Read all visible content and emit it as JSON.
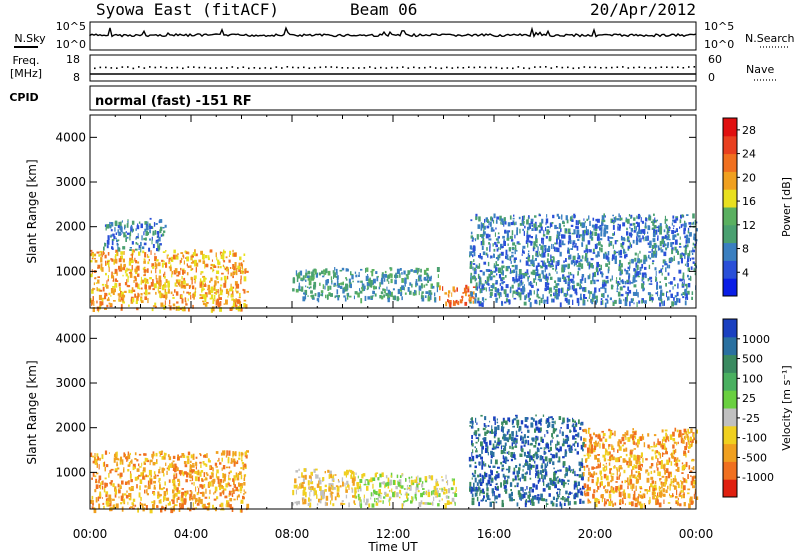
{
  "header": {
    "station": "Syowa East (fitACF)",
    "beam": "Beam 06",
    "date": "20/Apr/2012"
  },
  "top_panel": {
    "left_label": "N.Sky",
    "left_ticks": [
      "10^5",
      "10^0"
    ],
    "right_label": "N.Search",
    "right_ticks": [
      "10^5",
      "10^0"
    ],
    "freq_label_1": "Freq.",
    "freq_label_2": "[MHz]",
    "freq_ticks": [
      "18",
      "8"
    ],
    "nave_label": "Nave",
    "nave_ticks": [
      "60",
      "0"
    ],
    "cpid_label": "CPID",
    "mode_text": "normal (fast) -151 RF"
  },
  "chart_data": [
    {
      "type": "heatmap",
      "title": "",
      "xlabel": "Time UT",
      "ylabel": "Slant Range [km]",
      "xlim": [
        0,
        24
      ],
      "ylim": [
        180,
        4500
      ],
      "x_ticks": [
        "00:00",
        "04:00",
        "08:00",
        "12:00",
        "16:00",
        "20:00",
        "00:00"
      ],
      "y_ticks": [
        "1000",
        "2000",
        "3000",
        "4000"
      ],
      "colorbar": {
        "label": "Power [dB]",
        "ticks": [
          "4",
          "8",
          "12",
          "16",
          "20",
          "24",
          "28"
        ],
        "range": [
          0,
          30
        ],
        "colors": [
          "#0a1ee6",
          "#2a4fd8",
          "#3a7fc0",
          "#4aa070",
          "#5ab060",
          "#e8e020",
          "#f0a020",
          "#f07020",
          "#e84020",
          "#e01010"
        ]
      },
      "regions": [
        {
          "t0": 0.0,
          "t1": 6.2,
          "r0": 180,
          "r1": 1500,
          "value": 20
        },
        {
          "t0": 0.5,
          "t1": 3.0,
          "r0": 1500,
          "r1": 2200,
          "value": 8
        },
        {
          "t0": 8.0,
          "t1": 13.8,
          "r0": 400,
          "r1": 1100,
          "value": 10
        },
        {
          "t0": 13.8,
          "t1": 15.2,
          "r0": 300,
          "r1": 700,
          "value": 24
        },
        {
          "t0": 15.0,
          "t1": 24.0,
          "r0": 300,
          "r1": 2300,
          "value": 8
        }
      ]
    },
    {
      "type": "heatmap",
      "title": "",
      "xlabel": "Time UT",
      "ylabel": "Slant Range [km]",
      "xlim": [
        0,
        24
      ],
      "ylim": [
        180,
        4500
      ],
      "x_ticks": [
        "00:00",
        "04:00",
        "08:00",
        "12:00",
        "16:00",
        "20:00",
        "00:00"
      ],
      "y_ticks": [
        "1000",
        "2000",
        "3000",
        "4000"
      ],
      "colorbar": {
        "label": "Velocity [m s⁻¹]",
        "ticks": [
          "1000",
          "500",
          "100",
          "25",
          "-25",
          "-100",
          "-500",
          "-1000"
        ],
        "colors": [
          "#1a40c0",
          "#2a70a0",
          "#3a8a60",
          "#4ab060",
          "#6ad040",
          "#c0c0c0",
          "#f0d020",
          "#f0a020",
          "#f07020",
          "#e02010"
        ]
      },
      "regions": [
        {
          "t0": 0.0,
          "t1": 6.2,
          "r0": 180,
          "r1": 1500,
          "value": -300
        },
        {
          "t0": 8.0,
          "t1": 10.5,
          "r0": 300,
          "r1": 1100,
          "value": -80
        },
        {
          "t0": 10.5,
          "t1": 14.5,
          "r0": 300,
          "r1": 1000,
          "value": 0
        },
        {
          "t0": 15.0,
          "t1": 19.5,
          "r0": 300,
          "r1": 2300,
          "value": 150
        },
        {
          "t0": 19.5,
          "t1": 24.0,
          "r0": 300,
          "r1": 2000,
          "value": -120
        }
      ]
    }
  ]
}
